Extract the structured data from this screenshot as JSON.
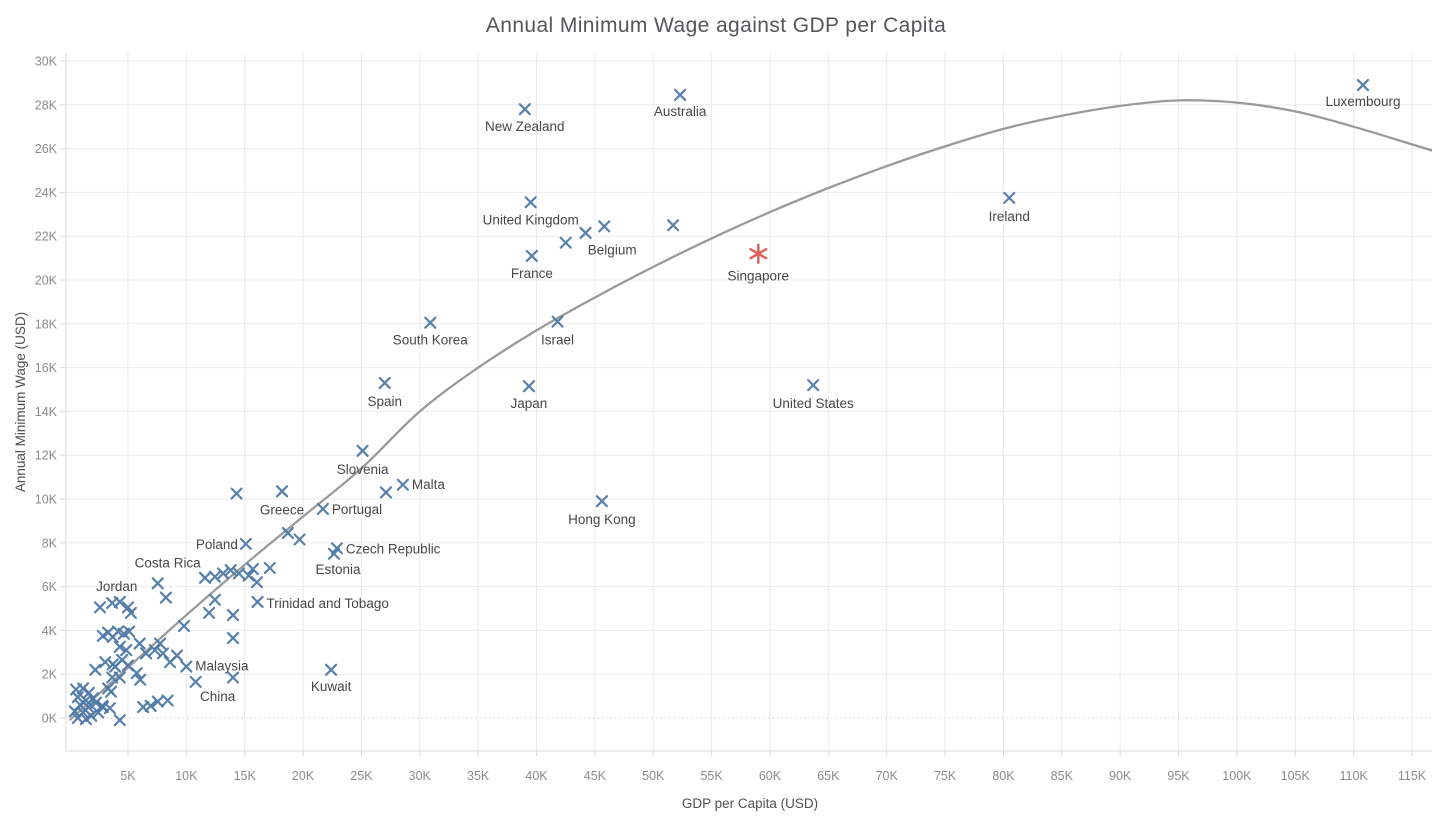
{
  "title": "Annual Minimum Wage against GDP per Capita",
  "chart_data": {
    "type": "scatter",
    "title": "Annual Minimum Wage against GDP per Capita",
    "xlabel": "GDP per Capita (USD)",
    "ylabel": "Annual Minimum Wage (USD)",
    "xlim": [
      -0.3,
      116.8
    ],
    "ylim": [
      -1.5,
      30.4
    ],
    "grid": true,
    "legend": "none",
    "units": "thousands of USD",
    "x_tick_values": [
      5,
      10,
      15,
      20,
      25,
      30,
      35,
      40,
      45,
      50,
      55,
      60,
      65,
      70,
      75,
      80,
      85,
      90,
      95,
      100,
      105,
      110,
      115
    ],
    "x_tick_labels": [
      "5K",
      "10K",
      "15K",
      "20K",
      "25K",
      "30K",
      "35K",
      "40K",
      "45K",
      "50K",
      "55K",
      "60K",
      "65K",
      "70K",
      "75K",
      "80K",
      "85K",
      "90K",
      "95K",
      "100K",
      "105K",
      "110K",
      "115K"
    ],
    "y_tick_values": [
      0,
      2,
      4,
      6,
      8,
      10,
      12,
      14,
      16,
      18,
      20,
      22,
      24,
      26,
      28,
      30
    ],
    "y_tick_labels": [
      "0K",
      "2K",
      "4K",
      "6K",
      "8K",
      "10K",
      "12K",
      "14K",
      "16K",
      "18K",
      "20K",
      "22K",
      "24K",
      "26K",
      "28K",
      "30K"
    ],
    "colors": {
      "marker": "#4e79a7",
      "highlight": "#e0605e",
      "trend": "#9a9a9a"
    },
    "series": [
      {
        "name": "countries",
        "marker": "x",
        "color": "#4e79a7",
        "points": [
          {
            "gdp": 110.8,
            "wage": 28.9,
            "label": "Luxembourg",
            "dy": 21
          },
          {
            "gdp": 52.3,
            "wage": 28.45,
            "label": "Australia",
            "dy": 21
          },
          {
            "gdp": 39.0,
            "wage": 27.8,
            "label": "New Zealand",
            "dy": 22
          },
          {
            "gdp": 80.5,
            "wage": 23.75,
            "label": "Ireland",
            "dy": 23
          },
          {
            "gdp": 39.5,
            "wage": 23.55,
            "label": "United Kingdom",
            "dy": 22
          },
          {
            "gdp": 45.8,
            "wage": 22.45,
            "label": "Belgium",
            "dx": 8,
            "dy": 28
          },
          {
            "gdp": 39.6,
            "wage": 21.1,
            "label": "France",
            "dy": 22
          },
          {
            "gdp": 41.8,
            "wage": 18.1,
            "label": "Israel",
            "dy": 23
          },
          {
            "gdp": 30.9,
            "wage": 18.05,
            "label": "South Korea",
            "dy": 22
          },
          {
            "gdp": 27.0,
            "wage": 15.3,
            "label": "Spain",
            "dy": 23
          },
          {
            "gdp": 39.35,
            "wage": 15.15,
            "label": "Japan",
            "dy": 22
          },
          {
            "gdp": 63.7,
            "wage": 15.2,
            "label": "United States",
            "dy": 23
          },
          {
            "gdp": 25.1,
            "wage": 12.2,
            "label": "Slovenia",
            "dy": 23
          },
          {
            "gdp": 28.55,
            "wage": 10.65,
            "label": "Malta",
            "anchor": "start",
            "dx": 9,
            "dy": 4
          },
          {
            "gdp": 18.2,
            "wage": 10.35,
            "label": "Greece",
            "dy": 23
          },
          {
            "gdp": 21.7,
            "wage": 9.55,
            "label": "Portugal",
            "anchor": "start",
            "dx": 9,
            "dy": 5
          },
          {
            "gdp": 45.6,
            "wage": 9.9,
            "label": "Hong Kong",
            "dy": 23
          },
          {
            "gdp": 15.1,
            "wage": 7.95,
            "label": "Poland",
            "anchor": "end",
            "dx": -8,
            "dy": 5
          },
          {
            "gdp": 22.9,
            "wage": 7.75,
            "label": "Czech Republic",
            "anchor": "start",
            "dx": 9,
            "dy": 5
          },
          {
            "gdp": 22.65,
            "wage": 7.5,
            "label": "Estonia",
            "dx": 4,
            "dy": 20
          },
          {
            "gdp": 7.55,
            "wage": 6.15,
            "label": "Costa Rica",
            "dx": 10,
            "dy": -16
          },
          {
            "gdp": 4.3,
            "wage": 5.3,
            "label": "Jordan",
            "dx": -3,
            "dy": -11
          },
          {
            "gdp": 16.1,
            "wage": 5.3,
            "label": "Trinidad and Tobago",
            "anchor": "start",
            "dx": 9,
            "dy": 6
          },
          {
            "gdp": 10.0,
            "wage": 2.35,
            "label": "Malaysia",
            "anchor": "start",
            "dx": 9,
            "dy": 4
          },
          {
            "gdp": 10.8,
            "wage": 1.65,
            "label": "China",
            "dx": 22,
            "dy": 19
          },
          {
            "gdp": 22.4,
            "wage": 2.2,
            "label": "Kuwait",
            "dy": 21
          },
          {
            "gdp": 42.5,
            "wage": 21.7
          },
          {
            "gdp": 44.2,
            "wage": 22.15
          },
          {
            "gdp": 51.7,
            "wage": 22.5
          },
          {
            "gdp": 27.1,
            "wage": 10.3
          },
          {
            "gdp": 14.3,
            "wage": 10.25
          },
          {
            "gdp": 18.7,
            "wage": 8.45
          },
          {
            "gdp": 19.7,
            "wage": 8.15
          },
          {
            "gdp": 11.6,
            "wage": 6.4
          },
          {
            "gdp": 12.45,
            "wage": 6.45
          },
          {
            "gdp": 13.15,
            "wage": 6.6
          },
          {
            "gdp": 13.8,
            "wage": 6.75
          },
          {
            "gdp": 14.5,
            "wage": 6.6
          },
          {
            "gdp": 15.35,
            "wage": 6.5
          },
          {
            "gdp": 15.7,
            "wage": 6.8
          },
          {
            "gdp": 16.05,
            "wage": 6.2
          },
          {
            "gdp": 17.15,
            "wage": 6.85
          },
          {
            "gdp": 8.25,
            "wage": 5.5
          },
          {
            "gdp": 2.6,
            "wage": 5.05
          },
          {
            "gdp": 3.65,
            "wage": 5.25
          },
          {
            "gdp": 5.0,
            "wage": 5.05
          },
          {
            "gdp": 5.25,
            "wage": 4.8
          },
          {
            "gdp": 12.45,
            "wage": 5.4
          },
          {
            "gdp": 11.95,
            "wage": 4.8
          },
          {
            "gdp": 14.0,
            "wage": 4.7
          },
          {
            "gdp": 9.8,
            "wage": 4.2
          },
          {
            "gdp": 14.0,
            "wage": 3.65
          },
          {
            "gdp": 2.85,
            "wage": 3.75
          },
          {
            "gdp": 3.3,
            "wage": 3.9
          },
          {
            "gdp": 3.7,
            "wage": 3.7
          },
          {
            "gdp": 4.15,
            "wage": 3.95
          },
          {
            "gdp": 4.65,
            "wage": 3.85
          },
          {
            "gdp": 5.1,
            "wage": 3.95
          },
          {
            "gdp": 4.3,
            "wage": 3.25
          },
          {
            "gdp": 4.85,
            "wage": 3.1
          },
          {
            "gdp": 6.0,
            "wage": 3.4
          },
          {
            "gdp": 6.55,
            "wage": 2.95
          },
          {
            "gdp": 7.3,
            "wage": 3.1
          },
          {
            "gdp": 7.75,
            "wage": 3.4
          },
          {
            "gdp": 8.0,
            "wage": 2.95
          },
          {
            "gdp": 8.6,
            "wage": 2.55
          },
          {
            "gdp": 9.2,
            "wage": 2.85
          },
          {
            "gdp": 3.05,
            "wage": 2.55
          },
          {
            "gdp": 3.7,
            "wage": 2.45
          },
          {
            "gdp": 4.5,
            "wage": 2.65
          },
          {
            "gdp": 5.0,
            "wage": 2.4
          },
          {
            "gdp": 3.9,
            "wage": 2.35
          },
          {
            "gdp": 14.0,
            "wage": 1.85
          },
          {
            "gdp": 2.2,
            "wage": 2.2
          },
          {
            "gdp": 5.75,
            "wage": 2.05
          },
          {
            "gdp": 6.05,
            "wage": 1.75
          },
          {
            "gdp": 4.3,
            "wage": 1.85
          },
          {
            "gdp": 3.65,
            "wage": 1.85
          },
          {
            "gdp": 0.55,
            "wage": 1.3
          },
          {
            "gdp": 1.15,
            "wage": 1.35
          },
          {
            "gdp": 1.65,
            "wage": 1.15
          },
          {
            "gdp": 0.7,
            "wage": 0.95
          },
          {
            "gdp": 1.4,
            "wage": 0.8
          },
          {
            "gdp": 2.0,
            "wage": 0.9
          },
          {
            "gdp": 0.9,
            "wage": 0.6
          },
          {
            "gdp": 1.6,
            "wage": 0.5
          },
          {
            "gdp": 2.25,
            "wage": 0.7
          },
          {
            "gdp": 0.45,
            "wage": 0.3
          },
          {
            "gdp": 1.15,
            "wage": 0.25
          },
          {
            "gdp": 1.85,
            "wage": 0.1
          },
          {
            "gdp": 2.45,
            "wage": 0.25
          },
          {
            "gdp": 0.7,
            "wage": 0.0
          },
          {
            "gdp": 1.4,
            "wage": -0.05
          },
          {
            "gdp": 2.8,
            "wage": 0.55
          },
          {
            "gdp": 3.3,
            "wage": 1.35
          },
          {
            "gdp": 3.55,
            "wage": 1.2
          },
          {
            "gdp": 2.85,
            "wage": 0.5
          },
          {
            "gdp": 3.45,
            "wage": 0.45
          },
          {
            "gdp": 4.3,
            "wage": -0.1
          },
          {
            "gdp": 6.3,
            "wage": 0.5
          },
          {
            "gdp": 6.95,
            "wage": 0.55
          },
          {
            "gdp": 7.55,
            "wage": 0.75
          },
          {
            "gdp": 8.4,
            "wage": 0.8
          }
        ]
      },
      {
        "name": "highlight",
        "marker": "asterisk",
        "color": "#e0605e",
        "points": [
          {
            "gdp": 59.0,
            "wage": 21.2,
            "label": "Singapore",
            "dy": 27
          }
        ]
      }
    ],
    "trend": {
      "type": "polynomial-fit",
      "color": "#9a9a9a",
      "points": [
        [
          0,
          -0.1
        ],
        [
          5,
          2.3
        ],
        [
          10,
          4.7
        ],
        [
          15,
          7.0
        ],
        [
          20,
          9.2
        ],
        [
          25,
          11.4
        ],
        [
          30,
          14.0
        ],
        [
          35,
          16.0
        ],
        [
          40,
          17.7
        ],
        [
          45,
          19.2
        ],
        [
          50,
          20.6
        ],
        [
          55,
          21.9
        ],
        [
          60,
          23.1
        ],
        [
          65,
          24.2
        ],
        [
          70,
          25.2
        ],
        [
          75,
          26.1
        ],
        [
          80,
          26.9
        ],
        [
          85,
          27.5
        ],
        [
          90,
          27.95
        ],
        [
          95,
          28.2
        ],
        [
          100,
          28.1
        ],
        [
          105,
          27.7
        ],
        [
          110,
          27.0
        ],
        [
          116.8,
          25.9
        ]
      ]
    }
  }
}
